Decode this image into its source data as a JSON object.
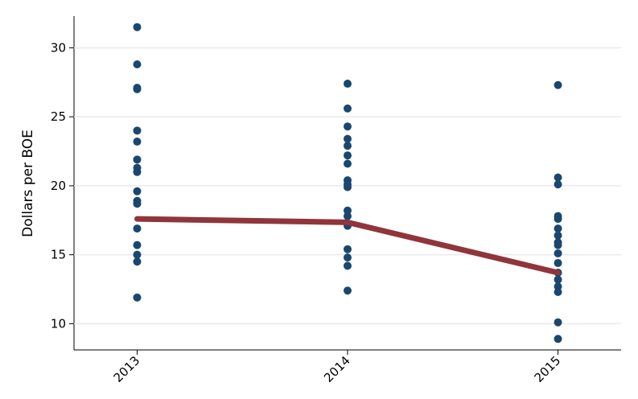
{
  "chart_data": {
    "type": "scatter",
    "y_label": "Dollars per BOE",
    "xlim": [
      2012.7,
      2015.3
    ],
    "xticks": [
      2013,
      2014,
      2015
    ],
    "ylim": [
      8.1,
      32.3
    ],
    "yticks": [
      10,
      15,
      20,
      25,
      30
    ],
    "grid": true,
    "series": [
      {
        "type": "scatter",
        "color": "#1a476f",
        "x": [
          2013,
          2013,
          2013,
          2013,
          2013,
          2013,
          2013,
          2013,
          2013,
          2013,
          2013,
          2013,
          2013,
          2013,
          2013,
          2013,
          2013,
          2014,
          2014,
          2014,
          2014,
          2014,
          2014,
          2014,
          2014,
          2014,
          2014,
          2014,
          2014,
          2014,
          2014,
          2014,
          2014,
          2014,
          2015,
          2015,
          2015,
          2015,
          2015,
          2015,
          2015,
          2015,
          2015,
          2015,
          2015,
          2015,
          2015,
          2015,
          2015,
          2015,
          2015
        ],
        "values": [
          31.5,
          28.8,
          27.1,
          27.0,
          24.0,
          23.2,
          21.9,
          21.3,
          21.0,
          19.6,
          18.9,
          18.7,
          16.9,
          15.7,
          15.0,
          14.5,
          11.9,
          27.4,
          25.6,
          24.3,
          23.4,
          22.9,
          22.2,
          21.6,
          20.4,
          20.1,
          19.9,
          18.2,
          17.8,
          17.1,
          15.4,
          14.8,
          14.2,
          12.4,
          27.3,
          20.6,
          20.1,
          17.8,
          17.6,
          16.9,
          16.4,
          15.9,
          15.7,
          15.1,
          14.4,
          13.7,
          13.2,
          12.7,
          12.3,
          10.1,
          8.9
        ]
      },
      {
        "type": "line",
        "color": "#90353b",
        "x": [
          2013,
          2014,
          2015
        ],
        "values": [
          17.6,
          17.35,
          13.7
        ]
      }
    ]
  }
}
